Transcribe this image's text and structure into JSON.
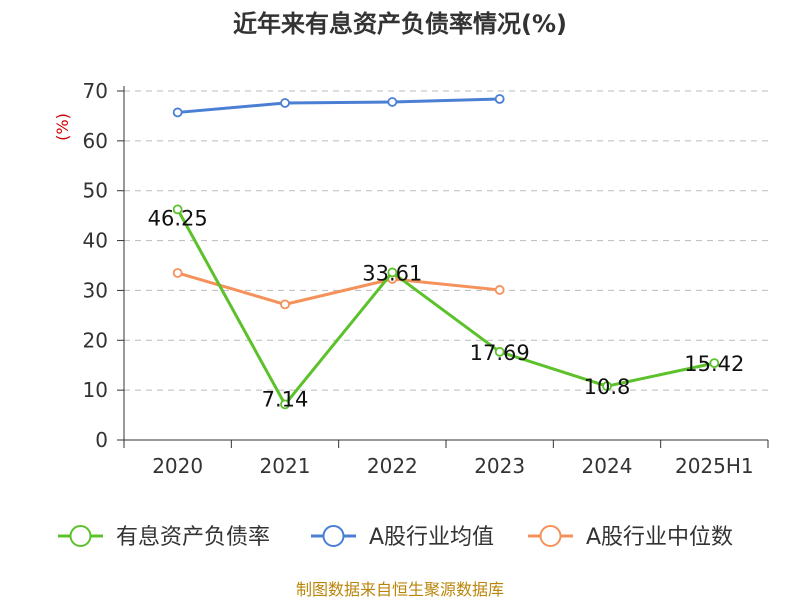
{
  "chart_data": {
    "type": "line",
    "title": "近年来有息资产负债率情况(%)",
    "ylabel": "(%)",
    "xlabel": "",
    "ylim": [
      0,
      70
    ],
    "yticks": [
      0,
      10,
      20,
      30,
      40,
      50,
      60,
      70
    ],
    "categories": [
      "2020",
      "2021",
      "2022",
      "2023",
      "2024",
      "2025H1"
    ],
    "grid": true,
    "legend_position": "bottom",
    "series": [
      {
        "name": "有息资产负债率",
        "color": "#5cc12b",
        "values": [
          46.25,
          7.14,
          33.61,
          17.69,
          10.8,
          15.42
        ],
        "labels": [
          "46.25",
          "7.14",
          "33.61",
          "17.69",
          "10.8",
          "15.42"
        ]
      },
      {
        "name": "A股行业均值",
        "color": "#4a7fd4",
        "values": [
          65.7,
          67.6,
          67.8,
          68.4,
          null,
          null
        ]
      },
      {
        "name": "A股行业中位数",
        "color": "#f5915a",
        "values": [
          33.5,
          27.2,
          32.3,
          30.1,
          null,
          null
        ]
      }
    ],
    "source": "制图数据来自恒生聚源数据库"
  }
}
